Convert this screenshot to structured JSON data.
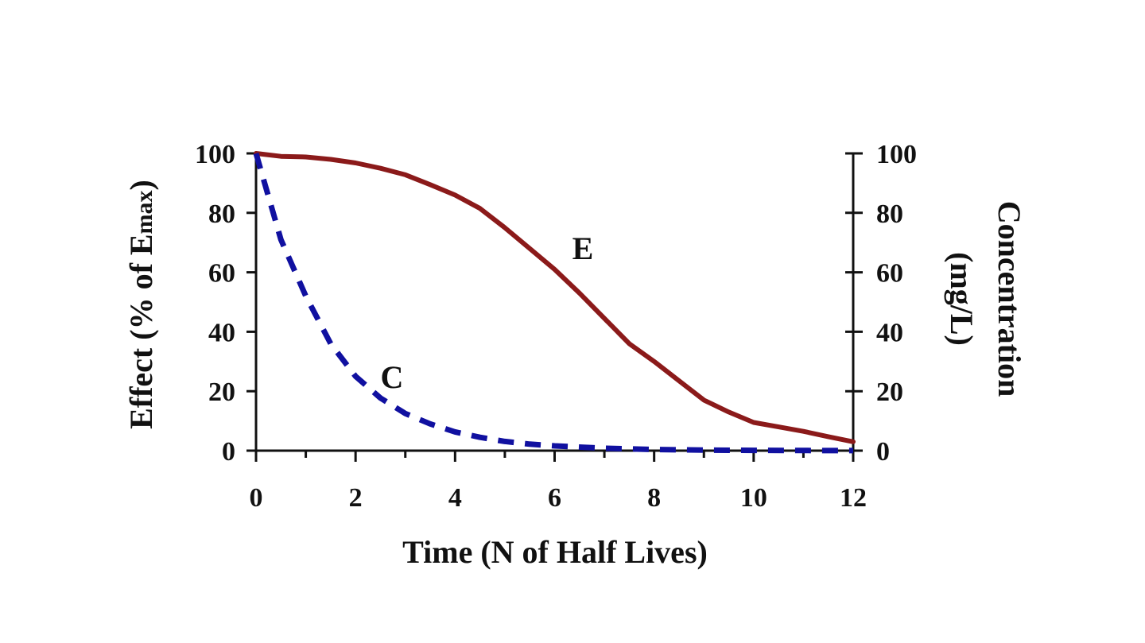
{
  "chart_data": {
    "type": "line",
    "title": "",
    "xlabel": "Time (N of Half Lives)",
    "ylabel_left": {
      "main": "Effect (% of E",
      "sub": "max",
      "close": ")"
    },
    "ylabel_right": [
      "Concentration",
      "(mg/L)"
    ],
    "xlim": [
      0,
      12
    ],
    "ylim_left": [
      0,
      100
    ],
    "ylim_right": [
      0,
      100
    ],
    "x_ticks": [
      0,
      2,
      4,
      6,
      8,
      10,
      12
    ],
    "x_tick_labels": [
      "0",
      "2",
      "4",
      "6",
      "8",
      "10",
      "12"
    ],
    "y_ticks": [
      0,
      20,
      40,
      60,
      80,
      100
    ],
    "y_tick_labels_left": [
      "0",
      "20",
      "40",
      "60",
      "80",
      "100"
    ],
    "y_tick_labels_right": [
      "0",
      "20",
      "40",
      "60",
      "80",
      "100"
    ],
    "grid": false,
    "legend": "none",
    "series": [
      {
        "label": "E",
        "axis": "left",
        "color": "#8b1a1a",
        "style": "solid",
        "x": [
          0,
          0.5,
          1,
          1.5,
          2,
          2.5,
          3,
          3.5,
          4,
          4.5,
          5,
          5.5,
          6,
          6.5,
          7,
          7.5,
          8,
          8.5,
          9,
          9.5,
          10,
          10.5,
          11,
          11.5,
          12
        ],
        "values": [
          100,
          99,
          98.8,
          98,
          96.8,
          95,
          92.8,
          89.5,
          86,
          81.5,
          75,
          68,
          61,
          53,
          44.5,
          36,
          30,
          23.5,
          17,
          13,
          9.5,
          8,
          6.5,
          4.7,
          3
        ]
      },
      {
        "label": "C",
        "axis": "right",
        "color": "#1010a0",
        "style": "dashed",
        "x": [
          0,
          0.5,
          1,
          1.5,
          2,
          2.5,
          3,
          3.5,
          4,
          4.5,
          5,
          5.5,
          6,
          7,
          8,
          9,
          10,
          11,
          12
        ],
        "values": [
          100,
          71,
          52,
          36,
          25,
          17.7,
          12.5,
          9,
          6.3,
          4.5,
          3.1,
          2.2,
          1.6,
          0.8,
          0.4,
          0.2,
          0.1,
          0.05,
          0.02
        ]
      }
    ]
  }
}
